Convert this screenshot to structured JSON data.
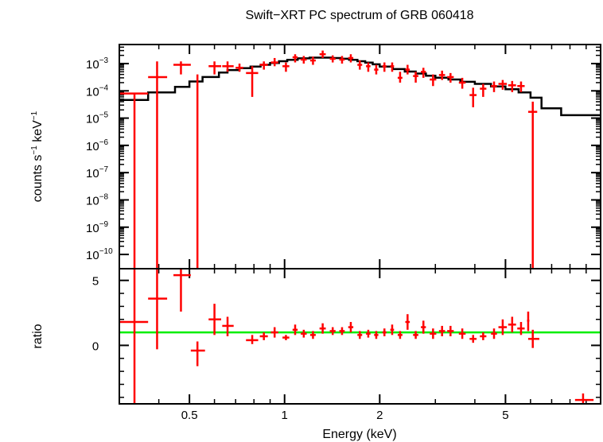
{
  "chart_data": [
    {
      "type": "scatter",
      "panel": "spectrum",
      "title": "Swift−XRT PC spectrum of GRB 060418",
      "ylabel_main": "counts s",
      "ylabel_exp1": "−1",
      "ylabel_mid": " keV",
      "ylabel_exp2": "−1",
      "xscale": "log",
      "yscale": "log",
      "xlim": [
        0.3,
        10
      ],
      "ylim": [
        3e-11,
        0.005
      ],
      "yticks": [
        {
          "v": 1e-10,
          "base": "10",
          "exp": "−10"
        },
        {
          "v": 1e-09,
          "base": "10",
          "exp": "−9"
        },
        {
          "v": 1e-08,
          "base": "10",
          "exp": "−8"
        },
        {
          "v": 1e-07,
          "base": "10",
          "exp": "−7"
        },
        {
          "v": 1e-06,
          "base": "10",
          "exp": "−6"
        },
        {
          "v": 1e-05,
          "base": "10",
          "exp": "−5"
        },
        {
          "v": 0.0001,
          "base": "10",
          "exp": "−4"
        },
        {
          "v": 0.001,
          "base": "10",
          "exp": "−3"
        }
      ],
      "data_color": "#ff0000",
      "model_color": "#000000",
      "series": [
        {
          "type": "errorbar",
          "points": [
            {
              "x": 0.335,
              "xlo": 0.3,
              "xhi": 0.37,
              "y": 8e-05,
              "ylo": 3e-11,
              "yhi": 8e-05
            },
            {
              "x": 0.395,
              "xlo": 0.37,
              "xhi": 0.425,
              "y": 0.00032,
              "ylo": 3e-11,
              "yhi": 0.0012
            },
            {
              "x": 0.47,
              "xlo": 0.445,
              "xhi": 0.505,
              "y": 0.0009,
              "ylo": 0.0004,
              "yhi": 0.0012
            },
            {
              "x": 0.53,
              "xlo": 0.53,
              "xhi": 0.53,
              "y": 0.0002,
              "ylo": 3e-11,
              "yhi": 0.0004
            },
            {
              "x": 0.6,
              "xlo": 0.575,
              "xhi": 0.63,
              "y": 0.0008,
              "ylo": 0.0004,
              "yhi": 0.0012
            },
            {
              "x": 0.66,
              "xlo": 0.635,
              "xhi": 0.69,
              "y": 0.0008,
              "ylo": 0.0005,
              "yhi": 0.0012
            },
            {
              "x": 0.72,
              "xlo": 0.7,
              "xhi": 0.74,
              "y": 0.0007,
              "ylo": 0.0005,
              "yhi": 0.001
            },
            {
              "x": 0.79,
              "xlo": 0.755,
              "xhi": 0.825,
              "y": 0.00045,
              "ylo": 6e-05,
              "yhi": 0.0008
            },
            {
              "x": 0.86,
              "xlo": 0.835,
              "xhi": 0.885,
              "y": 0.0009,
              "ylo": 0.0006,
              "yhi": 0.0012
            },
            {
              "x": 0.93,
              "xlo": 0.905,
              "xhi": 0.955,
              "y": 0.0011,
              "ylo": 0.0008,
              "yhi": 0.0016
            },
            {
              "x": 1.01,
              "xlo": 0.985,
              "xhi": 1.035,
              "y": 0.0008,
              "ylo": 0.0005,
              "yhi": 0.0011
            },
            {
              "x": 1.08,
              "xlo": 1.06,
              "xhi": 1.1,
              "y": 0.0017,
              "ylo": 0.0011,
              "yhi": 0.0022
            },
            {
              "x": 1.15,
              "xlo": 1.125,
              "xhi": 1.175,
              "y": 0.0014,
              "ylo": 0.001,
              "yhi": 0.0019
            },
            {
              "x": 1.23,
              "xlo": 1.205,
              "xhi": 1.255,
              "y": 0.0013,
              "ylo": 0.0009,
              "yhi": 0.0018
            },
            {
              "x": 1.32,
              "xlo": 1.29,
              "xhi": 1.35,
              "y": 0.0022,
              "ylo": 0.0016,
              "yhi": 0.003
            },
            {
              "x": 1.42,
              "xlo": 1.39,
              "xhi": 1.45,
              "y": 0.0015,
              "ylo": 0.0011,
              "yhi": 0.002
            },
            {
              "x": 1.52,
              "xlo": 1.49,
              "xhi": 1.55,
              "y": 0.0014,
              "ylo": 0.001,
              "yhi": 0.0019
            },
            {
              "x": 1.62,
              "xlo": 1.59,
              "xhi": 1.65,
              "y": 0.0016,
              "ylo": 0.0011,
              "yhi": 0.0022
            },
            {
              "x": 1.73,
              "xlo": 1.7,
              "xhi": 1.76,
              "y": 0.0009,
              "ylo": 0.0006,
              "yhi": 0.0013
            },
            {
              "x": 1.84,
              "xlo": 1.81,
              "xhi": 1.87,
              "y": 0.0008,
              "ylo": 0.0005,
              "yhi": 0.0011
            },
            {
              "x": 1.95,
              "xlo": 1.92,
              "xhi": 1.98,
              "y": 0.0006,
              "ylo": 0.0004,
              "yhi": 0.0009
            },
            {
              "x": 2.07,
              "xlo": 2.04,
              "xhi": 2.1,
              "y": 0.0008,
              "ylo": 0.0005,
              "yhi": 0.0011
            },
            {
              "x": 2.19,
              "xlo": 2.16,
              "xhi": 2.22,
              "y": 0.0008,
              "ylo": 0.0005,
              "yhi": 0.0011
            },
            {
              "x": 2.32,
              "xlo": 2.28,
              "xhi": 2.36,
              "y": 0.0003,
              "ylo": 0.0002,
              "yhi": 0.0005
            },
            {
              "x": 2.45,
              "xlo": 2.41,
              "xhi": 2.49,
              "y": 0.0006,
              "ylo": 0.0004,
              "yhi": 0.0009
            },
            {
              "x": 2.6,
              "xlo": 2.55,
              "xhi": 2.65,
              "y": 0.00035,
              "ylo": 0.0002,
              "yhi": 0.0005
            },
            {
              "x": 2.75,
              "xlo": 2.7,
              "xhi": 2.8,
              "y": 0.0005,
              "ylo": 0.0003,
              "yhi": 0.0007
            },
            {
              "x": 2.95,
              "xlo": 2.88,
              "xhi": 3.02,
              "y": 0.00026,
              "ylo": 0.00015,
              "yhi": 0.0004
            },
            {
              "x": 3.15,
              "xlo": 3.08,
              "xhi": 3.22,
              "y": 0.00038,
              "ylo": 0.00025,
              "yhi": 0.00055
            },
            {
              "x": 3.35,
              "xlo": 3.27,
              "xhi": 3.43,
              "y": 0.00032,
              "ylo": 0.0002,
              "yhi": 0.00045
            },
            {
              "x": 3.65,
              "xlo": 3.56,
              "xhi": 3.74,
              "y": 0.0002,
              "ylo": 0.00012,
              "yhi": 0.0003
            },
            {
              "x": 3.95,
              "xlo": 3.85,
              "xhi": 4.05,
              "y": 7e-05,
              "ylo": 2.5e-05,
              "yhi": 0.00013
            },
            {
              "x": 4.25,
              "xlo": 4.15,
              "xhi": 4.35,
              "y": 0.00012,
              "ylo": 6e-05,
              "yhi": 0.00018
            },
            {
              "x": 4.6,
              "xlo": 4.5,
              "xhi": 4.7,
              "y": 0.00015,
              "ylo": 9e-05,
              "yhi": 0.00022
            },
            {
              "x": 4.9,
              "xlo": 4.75,
              "xhi": 5.05,
              "y": 0.00018,
              "ylo": 0.00011,
              "yhi": 0.00025
            },
            {
              "x": 5.25,
              "xlo": 5.1,
              "xhi": 5.4,
              "y": 0.00016,
              "ylo": 9e-05,
              "yhi": 0.00023
            },
            {
              "x": 5.6,
              "xlo": 5.45,
              "xhi": 5.75,
              "y": 0.00015,
              "ylo": 9e-05,
              "yhi": 0.00022
            },
            {
              "x": 6.1,
              "xlo": 5.9,
              "xhi": 6.3,
              "y": 1.7e-05,
              "ylo": 3e-11,
              "yhi": 4e-05
            }
          ]
        },
        {
          "type": "model-step",
          "edges": [
            0.3,
            0.37,
            0.45,
            0.5,
            0.55,
            0.62,
            0.66,
            0.72,
            0.78,
            0.84,
            0.9,
            0.96,
            1.02,
            1.1,
            1.2,
            1.3,
            1.4,
            1.5,
            1.6,
            1.7,
            1.8,
            1.9,
            2.0,
            2.2,
            2.4,
            2.6,
            2.8,
            3.0,
            3.3,
            3.6,
            4.0,
            4.5,
            5.0,
            5.5,
            6.0,
            6.5,
            7.5,
            10.0
          ],
          "values": [
            4.6e-05,
            8.7e-05,
            0.00014,
            0.00022,
            0.00032,
            0.00047,
            0.00058,
            0.00068,
            0.00078,
            0.0009,
            0.00105,
            0.00122,
            0.00138,
            0.00155,
            0.00165,
            0.00165,
            0.0016,
            0.0015,
            0.00137,
            0.00122,
            0.00108,
            0.00094,
            0.00078,
            0.00063,
            0.00051,
            0.00043,
            0.00036,
            0.000305,
            0.00026,
            0.000215,
            0.00018,
            0.000145,
            0.000115,
            8.8e-05,
            5.6e-05,
            2.3e-05,
            1.28e-05
          ]
        }
      ]
    },
    {
      "type": "scatter",
      "panel": "ratio",
      "xlabel": "Energy (keV)",
      "ylabel": "ratio",
      "xscale": "log",
      "yscale": "linear",
      "xlim": [
        0.3,
        10
      ],
      "ylim": [
        -4.5,
        5.9
      ],
      "yticks": [
        {
          "v": 0,
          "label": "0"
        },
        {
          "v": 5,
          "label": "5"
        }
      ],
      "xticks": [
        {
          "v": 0.5,
          "label": "0.5"
        },
        {
          "v": 1,
          "label": "1"
        },
        {
          "v": 2,
          "label": "2"
        },
        {
          "v": 5,
          "label": "5"
        }
      ],
      "xminor": [
        0.4,
        0.6,
        0.7,
        0.8,
        0.9,
        3,
        4,
        6,
        7,
        8,
        9
      ],
      "reference_line": {
        "y": 1,
        "color": "#00ee00"
      },
      "data_color": "#ff0000",
      "series": [
        {
          "type": "errorbar",
          "points": [
            {
              "x": 0.335,
              "xlo": 0.3,
              "xhi": 0.37,
              "y": 1.8,
              "ylo": -4.5,
              "yhi": 5.9
            },
            {
              "x": 0.395,
              "xlo": 0.37,
              "xhi": 0.425,
              "y": 3.6,
              "ylo": -0.3,
              "yhi": 5.9
            },
            {
              "x": 0.47,
              "xlo": 0.445,
              "xhi": 0.505,
              "y": 5.4,
              "ylo": 2.6,
              "yhi": 5.9
            },
            {
              "x": 0.53,
              "xlo": 0.505,
              "xhi": 0.56,
              "y": -0.4,
              "ylo": -1.6,
              "yhi": 0.3
            },
            {
              "x": 0.6,
              "xlo": 0.575,
              "xhi": 0.63,
              "y": 2.0,
              "ylo": 0.8,
              "yhi": 3.2
            },
            {
              "x": 0.66,
              "xlo": 0.635,
              "xhi": 0.69,
              "y": 1.5,
              "ylo": 0.7,
              "yhi": 2.2
            },
            {
              "x": 0.79,
              "xlo": 0.755,
              "xhi": 0.825,
              "y": 0.4,
              "ylo": 0.1,
              "yhi": 0.8
            },
            {
              "x": 0.86,
              "xlo": 0.835,
              "xhi": 0.885,
              "y": 0.7,
              "ylo": 0.4,
              "yhi": 1.0
            },
            {
              "x": 0.93,
              "xlo": 0.905,
              "xhi": 0.955,
              "y": 1.0,
              "ylo": 0.6,
              "yhi": 1.4
            },
            {
              "x": 1.01,
              "xlo": 0.985,
              "xhi": 1.035,
              "y": 0.6,
              "ylo": 0.4,
              "yhi": 0.8
            },
            {
              "x": 1.08,
              "xlo": 1.06,
              "xhi": 1.1,
              "y": 1.2,
              "ylo": 0.8,
              "yhi": 1.6
            },
            {
              "x": 1.15,
              "xlo": 1.125,
              "xhi": 1.175,
              "y": 0.9,
              "ylo": 0.6,
              "yhi": 1.2
            },
            {
              "x": 1.23,
              "xlo": 1.205,
              "xhi": 1.255,
              "y": 0.8,
              "ylo": 0.5,
              "yhi": 1.1
            },
            {
              "x": 1.32,
              "xlo": 1.29,
              "xhi": 1.35,
              "y": 1.3,
              "ylo": 0.9,
              "yhi": 1.7
            },
            {
              "x": 1.42,
              "xlo": 1.39,
              "xhi": 1.45,
              "y": 1.1,
              "ylo": 0.8,
              "yhi": 1.4
            },
            {
              "x": 1.52,
              "xlo": 1.49,
              "xhi": 1.55,
              "y": 1.1,
              "ylo": 0.8,
              "yhi": 1.4
            },
            {
              "x": 1.62,
              "xlo": 1.59,
              "xhi": 1.65,
              "y": 1.4,
              "ylo": 1.0,
              "yhi": 1.8
            },
            {
              "x": 1.73,
              "xlo": 1.7,
              "xhi": 1.76,
              "y": 0.8,
              "ylo": 0.5,
              "yhi": 1.1
            },
            {
              "x": 1.84,
              "xlo": 1.81,
              "xhi": 1.87,
              "y": 0.9,
              "ylo": 0.6,
              "yhi": 1.2
            },
            {
              "x": 1.95,
              "xlo": 1.92,
              "xhi": 1.98,
              "y": 0.8,
              "ylo": 0.5,
              "yhi": 1.1
            },
            {
              "x": 2.07,
              "xlo": 2.04,
              "xhi": 2.1,
              "y": 1.0,
              "ylo": 0.7,
              "yhi": 1.3
            },
            {
              "x": 2.19,
              "xlo": 2.16,
              "xhi": 2.22,
              "y": 1.2,
              "ylo": 0.8,
              "yhi": 1.6
            },
            {
              "x": 2.32,
              "xlo": 2.28,
              "xhi": 2.36,
              "y": 0.8,
              "ylo": 0.5,
              "yhi": 1.1
            },
            {
              "x": 2.45,
              "xlo": 2.41,
              "xhi": 2.49,
              "y": 1.8,
              "ylo": 1.2,
              "yhi": 2.4
            },
            {
              "x": 2.6,
              "xlo": 2.55,
              "xhi": 2.65,
              "y": 0.8,
              "ylo": 0.5,
              "yhi": 1.1
            },
            {
              "x": 2.75,
              "xlo": 2.7,
              "xhi": 2.8,
              "y": 1.4,
              "ylo": 0.9,
              "yhi": 1.9
            },
            {
              "x": 2.95,
              "xlo": 2.88,
              "xhi": 3.02,
              "y": 0.9,
              "ylo": 0.5,
              "yhi": 1.3
            },
            {
              "x": 3.15,
              "xlo": 3.08,
              "xhi": 3.22,
              "y": 1.1,
              "ylo": 0.7,
              "yhi": 1.5
            },
            {
              "x": 3.35,
              "xlo": 3.27,
              "xhi": 3.43,
              "y": 1.1,
              "ylo": 0.7,
              "yhi": 1.5
            },
            {
              "x": 3.65,
              "xlo": 3.56,
              "xhi": 3.74,
              "y": 0.9,
              "ylo": 0.5,
              "yhi": 1.3
            },
            {
              "x": 3.95,
              "xlo": 3.85,
              "xhi": 4.05,
              "y": 0.5,
              "ylo": 0.2,
              "yhi": 0.8
            },
            {
              "x": 4.25,
              "xlo": 4.15,
              "xhi": 4.35,
              "y": 0.7,
              "ylo": 0.4,
              "yhi": 1.0
            },
            {
              "x": 4.6,
              "xlo": 4.5,
              "xhi": 4.7,
              "y": 0.9,
              "ylo": 0.5,
              "yhi": 1.3
            },
            {
              "x": 4.9,
              "xlo": 4.75,
              "xhi": 5.05,
              "y": 1.4,
              "ylo": 0.8,
              "yhi": 2.0
            },
            {
              "x": 5.25,
              "xlo": 5.1,
              "xhi": 5.4,
              "y": 1.6,
              "ylo": 1.0,
              "yhi": 2.2
            },
            {
              "x": 5.6,
              "xlo": 5.45,
              "xhi": 5.75,
              "y": 1.3,
              "ylo": 0.8,
              "yhi": 1.8
            },
            {
              "x": 5.9,
              "xlo": 5.85,
              "xhi": 5.95,
              "y": 1.9,
              "ylo": 1.1,
              "yhi": 2.6
            },
            {
              "x": 6.1,
              "xlo": 5.9,
              "xhi": 6.4,
              "y": 0.5,
              "ylo": -0.2,
              "yhi": 1.2
            },
            {
              "x": 8.8,
              "xlo": 8.3,
              "xhi": 9.5,
              "y": -4.2,
              "ylo": -4.5,
              "yhi": -3.7
            }
          ]
        }
      ]
    }
  ]
}
